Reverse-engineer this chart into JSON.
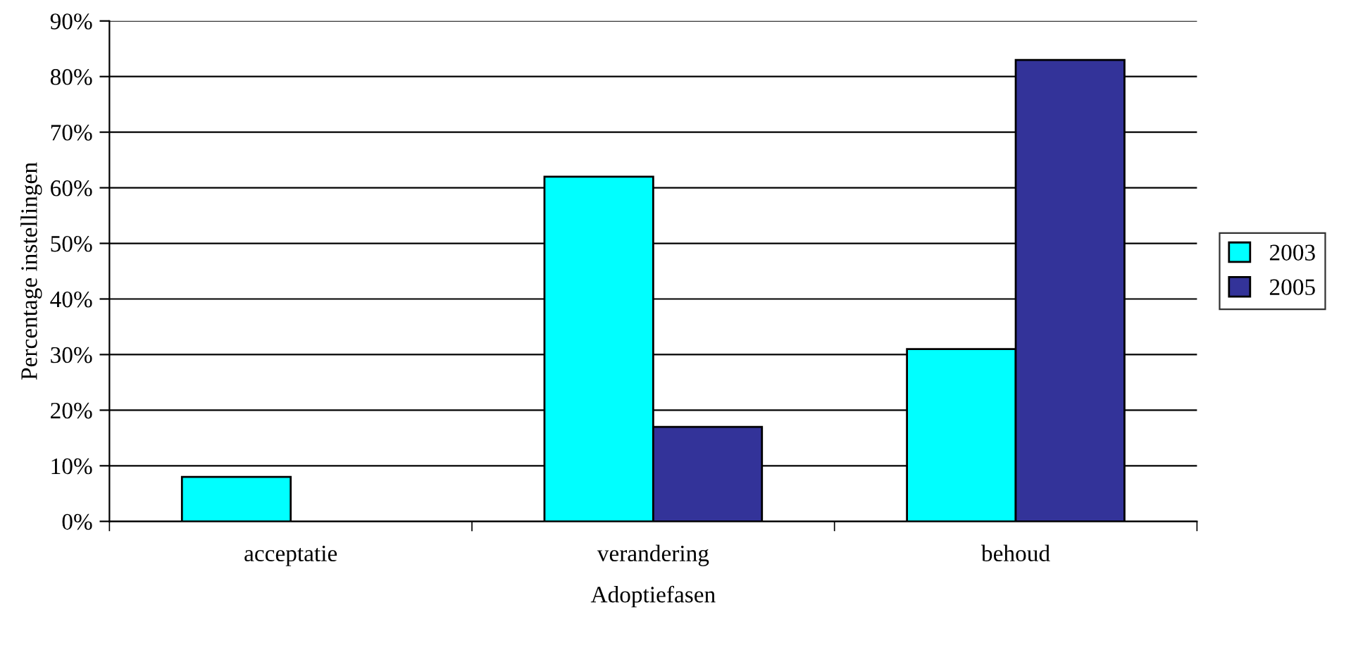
{
  "chart_data": {
    "type": "bar",
    "xlabel": "Adoptiefasen",
    "ylabel": "Percentage instellingen",
    "categories": [
      "acceptatie",
      "verandering",
      "behoud"
    ],
    "series": [
      {
        "name": "2003",
        "color": "#00ffff",
        "values": [
          8,
          62,
          31
        ]
      },
      {
        "name": "2005",
        "color": "#333399",
        "values": [
          null,
          17,
          83
        ]
      }
    ],
    "ylim": [
      0,
      90
    ],
    "yticks": [
      {
        "value": 0,
        "label": "0%"
      },
      {
        "value": 10,
        "label": "10%"
      },
      {
        "value": 20,
        "label": "20%"
      },
      {
        "value": 30,
        "label": "30%"
      },
      {
        "value": 40,
        "label": "40%"
      },
      {
        "value": 50,
        "label": "50%"
      },
      {
        "value": 60,
        "label": "60%"
      },
      {
        "value": 70,
        "label": "70%"
      },
      {
        "value": 80,
        "label": "80%"
      },
      {
        "value": 90,
        "label": "90%"
      }
    ],
    "grid": "y",
    "legend": "right"
  }
}
